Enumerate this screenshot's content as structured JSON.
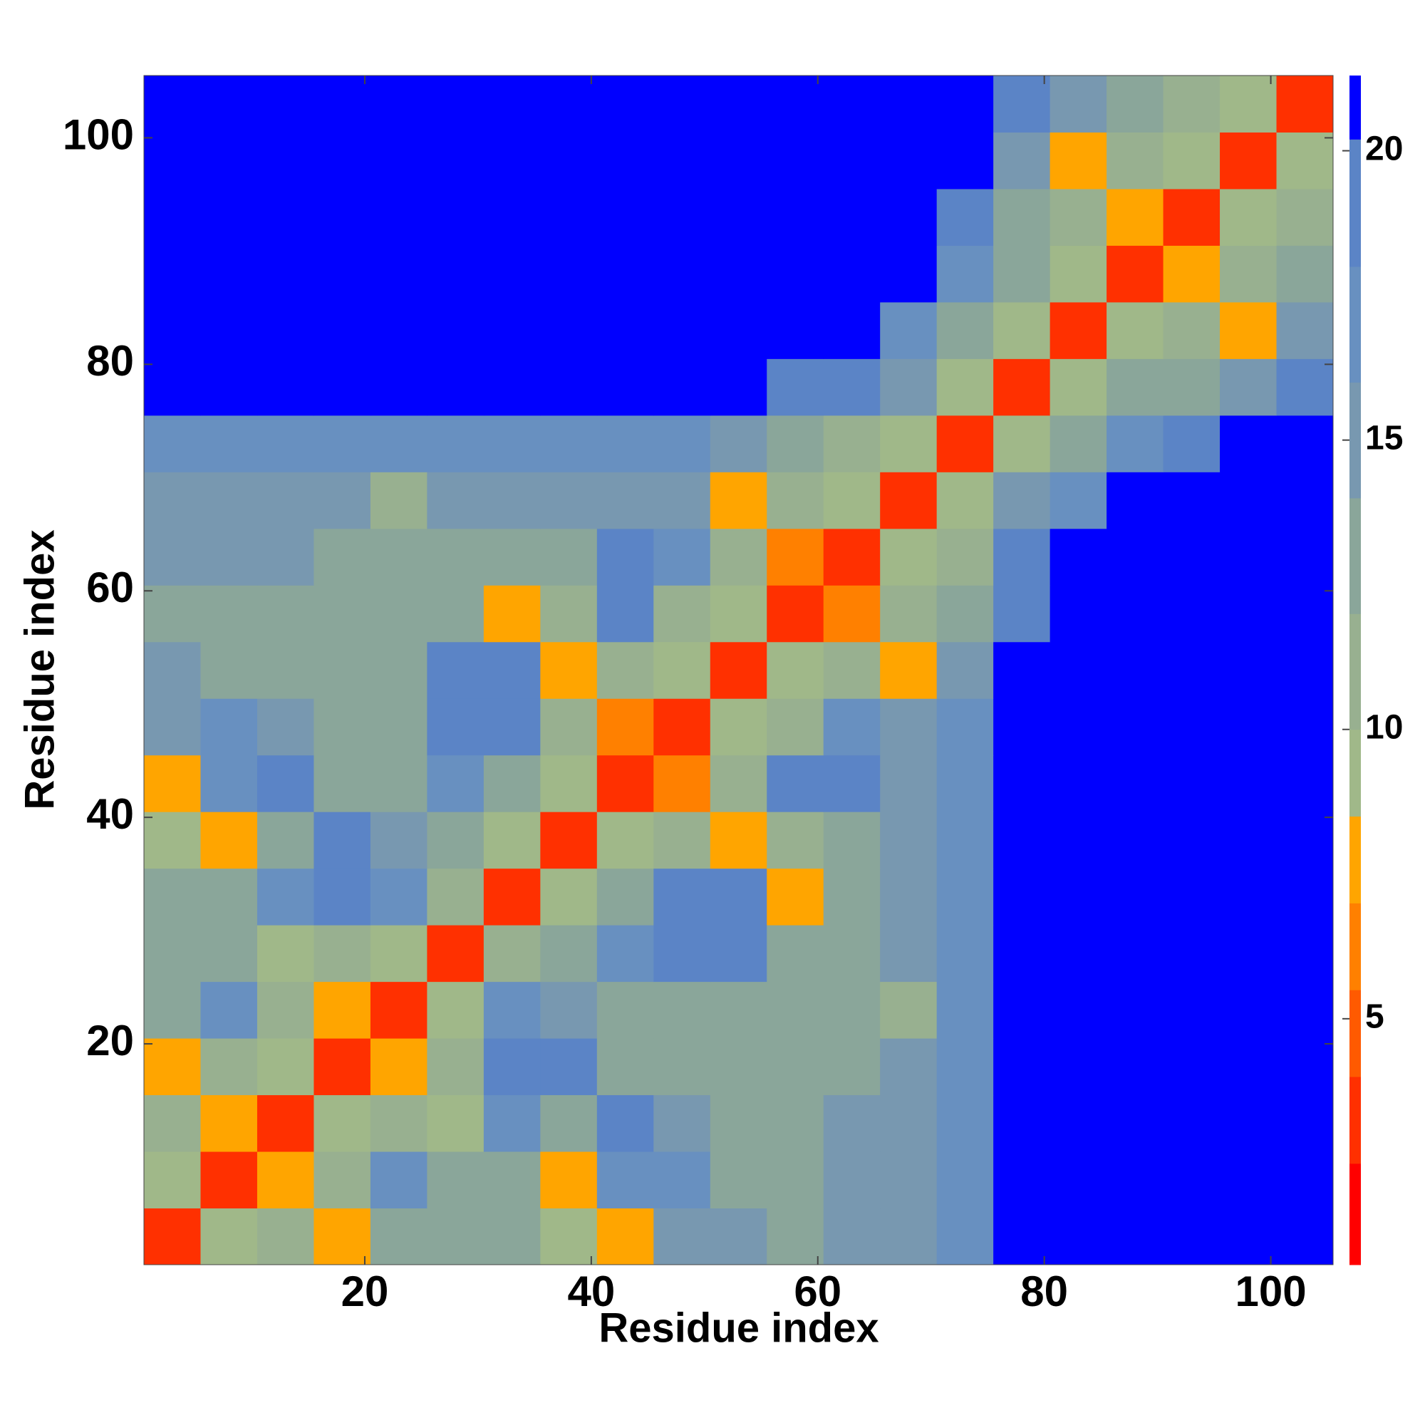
{
  "chart_data": {
    "type": "heatmap",
    "x_label": "Residue index",
    "y_label": "Residue index",
    "xlim": [
      0.5,
      105.5
    ],
    "ylim": [
      0.5,
      105.5
    ],
    "xticks": [
      20,
      40,
      60,
      80,
      100
    ],
    "yticks": [
      20,
      40,
      60,
      80,
      100
    ],
    "x_bins": [
      0.5,
      5.5,
      10.5,
      15.5,
      20.5,
      25.5,
      30.5,
      35.5,
      40.5,
      45.5,
      50.5,
      55.5,
      60.5,
      65.5,
      70.5,
      75.5,
      80.5,
      85.5,
      90.5,
      95.5,
      100.5,
      105.5
    ],
    "y_bins": [
      0.5,
      5.5,
      10.5,
      15.5,
      20.5,
      25.5,
      30.5,
      35.5,
      40.5,
      45.5,
      50.5,
      55.5,
      60.5,
      65.5,
      70.5,
      75.5,
      80.5,
      85.5,
      90.5,
      95.5,
      100.5,
      105.5
    ],
    "z": [
      [
        4,
        9,
        11,
        8,
        13,
        14,
        14,
        9,
        8,
        15,
        15,
        14,
        15,
        15,
        18,
        21,
        21,
        21,
        21,
        21,
        21
      ],
      [
        9,
        4,
        8,
        11,
        17,
        14,
        14,
        8,
        18,
        17,
        14,
        14,
        15,
        15,
        18,
        21,
        21,
        21,
        21,
        21,
        21
      ],
      [
        11,
        8,
        4,
        9,
        11,
        9,
        17,
        14,
        19,
        16,
        14,
        14,
        15,
        15,
        18,
        21,
        21,
        21,
        21,
        21,
        21
      ],
      [
        8,
        11,
        9,
        4,
        8,
        11,
        19,
        19,
        14,
        14,
        14,
        14,
        14,
        15,
        18,
        21,
        21,
        21,
        21,
        21,
        21
      ],
      [
        13,
        17,
        11,
        8,
        4,
        9,
        18,
        16,
        14,
        14,
        14,
        13,
        13,
        12,
        18,
        21,
        21,
        21,
        21,
        21,
        21
      ],
      [
        14,
        14,
        9,
        11,
        9,
        4,
        12,
        13,
        18,
        20,
        20,
        14,
        13,
        15,
        18,
        21,
        21,
        21,
        21,
        21,
        21
      ],
      [
        14,
        14,
        17,
        19,
        18,
        12,
        4,
        9,
        14,
        19,
        20,
        8,
        14,
        15,
        18,
        21,
        21,
        21,
        21,
        21,
        21
      ],
      [
        9,
        8,
        14,
        19,
        16,
        13,
        9,
        4,
        9,
        11,
        8,
        12,
        14,
        15,
        18,
        21,
        21,
        21,
        21,
        21,
        21
      ],
      [
        8,
        18,
        19,
        14,
        14,
        18,
        14,
        9,
        4,
        7,
        11,
        19,
        20,
        15,
        18,
        21,
        21,
        21,
        21,
        21,
        21
      ],
      [
        15,
        17,
        16,
        14,
        14,
        20,
        19,
        11,
        7,
        4,
        9,
        12,
        18,
        15,
        18,
        21,
        21,
        21,
        21,
        21,
        21
      ],
      [
        15,
        14,
        14,
        14,
        14,
        20,
        20,
        8,
        11,
        9,
        4,
        9,
        11,
        8,
        16,
        21,
        21,
        21,
        21,
        21,
        21
      ],
      [
        14,
        14,
        14,
        14,
        13,
        14,
        8,
        12,
        19,
        12,
        9,
        4,
        7,
        12,
        14,
        20,
        21,
        21,
        21,
        21,
        21
      ],
      [
        15,
        15,
        15,
        14,
        13,
        13,
        14,
        14,
        20,
        18,
        11,
        7,
        4,
        9,
        12,
        19,
        21,
        21,
        21,
        21,
        21
      ],
      [
        15,
        15,
        15,
        15,
        12,
        15,
        15,
        15,
        15,
        15,
        8,
        12,
        9,
        4,
        9,
        16,
        18,
        21,
        21,
        21,
        21
      ],
      [
        18,
        18,
        18,
        18,
        18,
        18,
        18,
        18,
        18,
        18,
        16,
        14,
        12,
        9,
        4,
        9,
        14,
        17,
        20,
        21,
        21
      ],
      [
        21,
        21,
        21,
        21,
        21,
        21,
        21,
        21,
        21,
        21,
        21,
        20,
        19,
        16,
        9,
        4,
        9,
        14,
        14,
        16,
        19
      ],
      [
        21,
        21,
        21,
        21,
        21,
        21,
        21,
        21,
        21,
        21,
        21,
        21,
        21,
        18,
        14,
        9,
        4,
        9,
        11,
        8,
        15
      ],
      [
        21,
        21,
        21,
        21,
        21,
        21,
        21,
        21,
        21,
        21,
        21,
        21,
        21,
        21,
        17,
        14,
        9,
        4,
        8,
        11,
        14
      ],
      [
        21,
        21,
        21,
        21,
        21,
        21,
        21,
        21,
        21,
        21,
        21,
        21,
        21,
        21,
        20,
        14,
        11,
        8,
        4,
        9,
        11
      ],
      [
        21,
        21,
        21,
        21,
        21,
        21,
        21,
        21,
        21,
        21,
        21,
        21,
        21,
        21,
        21,
        16,
        8,
        11,
        9,
        4,
        9
      ],
      [
        21,
        21,
        21,
        21,
        21,
        21,
        21,
        21,
        21,
        21,
        21,
        21,
        21,
        21,
        21,
        19,
        15,
        14,
        11,
        9,
        4
      ]
    ],
    "clim": [
      0.75,
      21.3
    ],
    "cticks": [
      5,
      10,
      15,
      20
    ],
    "color_levels": [
      {
        "max": 2.5,
        "color": "#ff0000"
      },
      {
        "max": 4,
        "color": "#ff3000"
      },
      {
        "max": 5.5,
        "color": "#ff5a00"
      },
      {
        "max": 7,
        "color": "#ff8000"
      },
      {
        "max": 8.5,
        "color": "#ffa500"
      },
      {
        "max": 10,
        "color": "#a0b889"
      },
      {
        "max": 12,
        "color": "#98b090"
      },
      {
        "max": 14,
        "color": "#8aa69a"
      },
      {
        "max": 16,
        "color": "#7898b0"
      },
      {
        "max": 18,
        "color": "#6890c0"
      },
      {
        "max": 20.2,
        "color": "#5b84c6"
      },
      {
        "max": 21.3,
        "color": "#0000ff"
      }
    ]
  }
}
